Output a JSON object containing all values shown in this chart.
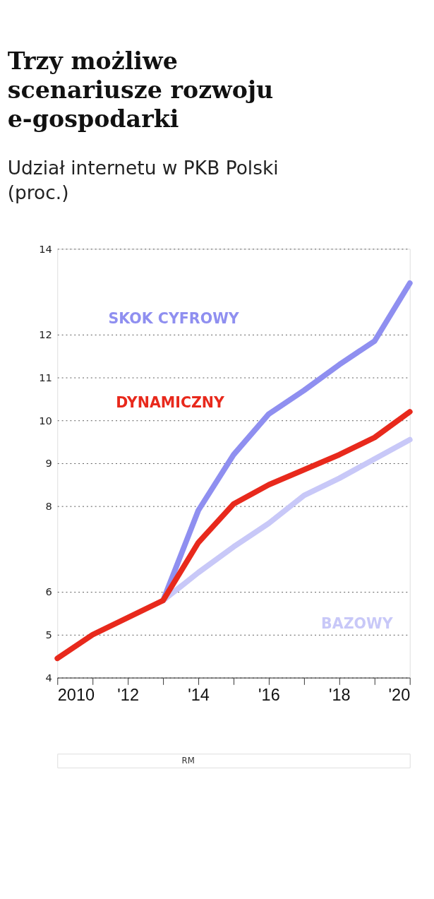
{
  "chart_data": {
    "type": "line",
    "title": "Trzy możliwe\nscenariusze rozwoju\ne-gospodarki",
    "subtitle": "Udział internetu w PKB Polski\n(proc.)",
    "x": [
      2010,
      2011,
      2012,
      2013,
      2014,
      2015,
      2016,
      2017,
      2018,
      2019,
      2020
    ],
    "series": [
      {
        "name": "SKOK CYFROWY",
        "color": "#8f8ff0",
        "values": [
          null,
          null,
          null,
          5.8,
          7.9,
          9.2,
          10.15,
          10.7,
          11.3,
          11.85,
          13.2
        ]
      },
      {
        "name": "BAZOWY",
        "color": "#c8c8f8",
        "values": [
          null,
          null,
          null,
          5.8,
          6.45,
          7.05,
          7.6,
          8.25,
          8.65,
          9.1,
          9.55
        ]
      },
      {
        "name": "DYNAMICZNY",
        "color": "#e8291c",
        "values": [
          4.45,
          5.0,
          5.4,
          5.8,
          7.15,
          8.05,
          8.5,
          8.85,
          9.2,
          9.6,
          10.2
        ]
      }
    ],
    "xlim": [
      2010,
      2020
    ],
    "xticks": [
      2010,
      {
        "value": 2011,
        "label": null
      },
      {
        "value": 2012,
        "label": "'12"
      },
      {
        "value": 2013,
        "label": null
      },
      {
        "value": 2014,
        "label": "'14"
      },
      {
        "value": 2015,
        "label": null
      },
      {
        "value": 2016,
        "label": "'16"
      },
      {
        "value": 2017,
        "label": null
      },
      {
        "value": 2018,
        "label": "'18"
      },
      {
        "value": 2019,
        "label": null
      },
      {
        "value": 2020,
        "label": "'20"
      }
    ],
    "ylim": [
      4,
      14
    ],
    "yticks": [
      4,
      5,
      6,
      8,
      9,
      10,
      11,
      12,
      14
    ],
    "grid": "y",
    "legend": false,
    "marker": "none",
    "line_style": "solid",
    "annotations": [
      "RM"
    ]
  }
}
